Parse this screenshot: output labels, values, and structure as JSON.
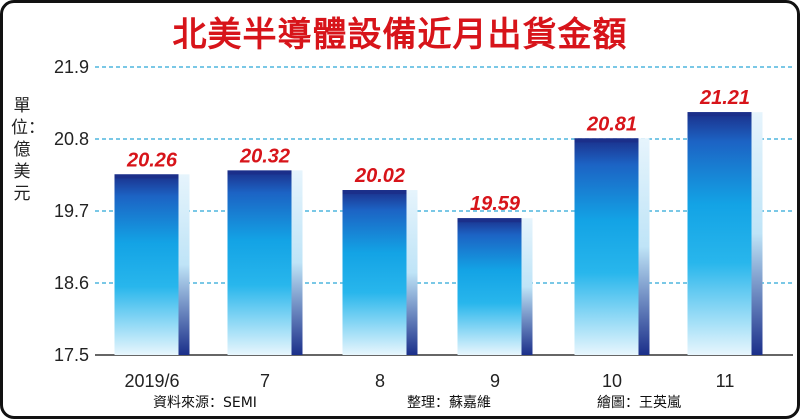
{
  "chart_data": {
    "type": "bar",
    "title": "北美半導體設備近月出貨金額",
    "ylabel": "單位：億美元",
    "categories": [
      "2019/6",
      "7",
      "8",
      "9",
      "10",
      "11"
    ],
    "values": [
      20.26,
      20.32,
      20.02,
      19.59,
      20.81,
      21.21
    ],
    "value_labels": [
      "20.26",
      "20.32",
      "20.02",
      "19.59",
      "20.81",
      "21.21"
    ],
    "yticks": [
      "17.5",
      "18.6",
      "19.7",
      "20.8",
      "21.9"
    ],
    "ylim": [
      17.5,
      21.9
    ],
    "grid": true,
    "colors": {
      "title": "#d7141a",
      "value_label": "#d7141a",
      "grid": "#2aa7d8",
      "bar_dark": "#1b2f8a",
      "bar_mid": "#15a8e6",
      "bar_light": "#e8f6fd"
    }
  },
  "credits": {
    "source": "資料來源：SEMI",
    "editor": "整理：蘇嘉維",
    "artist": "繪圖：王英嵐"
  }
}
